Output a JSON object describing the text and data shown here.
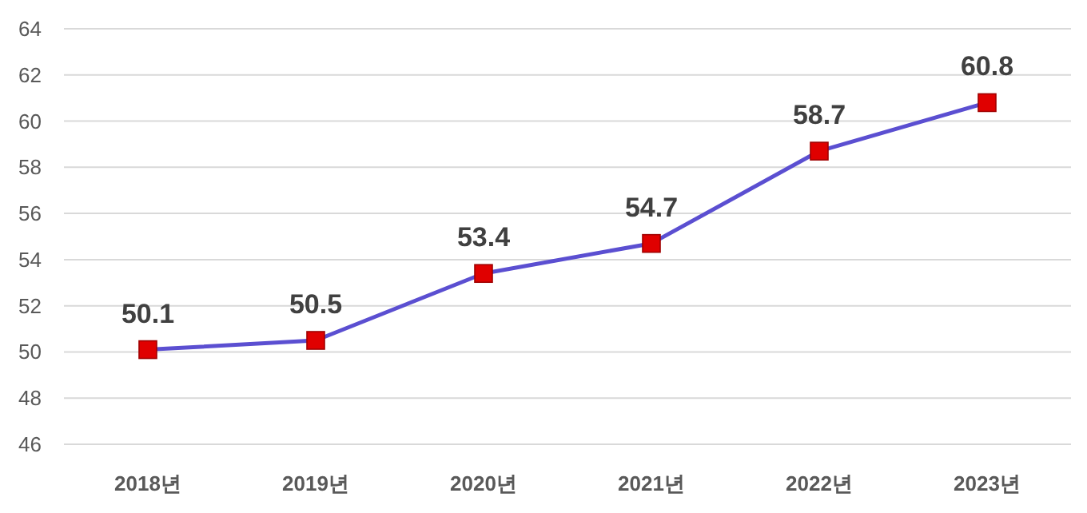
{
  "chart_data": {
    "type": "line",
    "categories": [
      "2018년",
      "2019년",
      "2020년",
      "2021년",
      "2022년",
      "2023년"
    ],
    "values": [
      50.1,
      50.5,
      53.4,
      54.7,
      58.7,
      60.8
    ],
    "color": "#5b4fd1",
    "colors": [
      "#e00000",
      "#e00000",
      "#e00000",
      "#e00000",
      "#e00000",
      "#e00000"
    ],
    "marker": "square",
    "data_labels": true,
    "grid": "y",
    "ylim": [
      46,
      64
    ],
    "yticks": [
      46,
      48,
      50,
      52,
      54,
      56,
      58,
      60,
      62,
      64
    ]
  }
}
